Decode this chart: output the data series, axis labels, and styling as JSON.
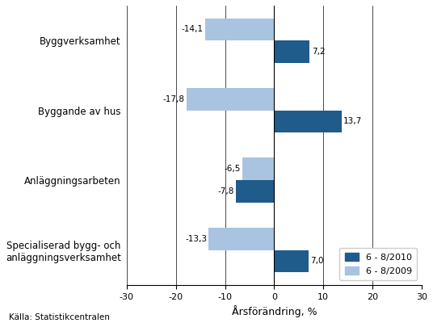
{
  "categories": [
    "Byggverksamhet",
    "Byggande av hus",
    "Anläggningsarbeten",
    "Specialiserad bygg- och\nanläggningsverksamhet"
  ],
  "values_2010": [
    7.2,
    13.7,
    -7.8,
    7.0
  ],
  "values_2009": [
    -14.1,
    -17.8,
    -6.5,
    -13.3
  ],
  "labels_2010": [
    "7,2",
    "13,7",
    "-7,8",
    "7,0"
  ],
  "labels_2009": [
    "-14,1",
    "-17,8",
    "-6,5",
    "-13,3"
  ],
  "color_2010": "#1F5C8B",
  "color_2009": "#A8C4E0",
  "xlim": [
    -30,
    30
  ],
  "xticks": [
    -30,
    -20,
    -10,
    0,
    10,
    20,
    30
  ],
  "xlabel": "Årsförändring, %",
  "legend_2010": "6 - 8/2010",
  "legend_2009": "6 - 8/2009",
  "source": "Källa: Statistikcentralen",
  "bar_height": 0.32,
  "figsize": [
    5.36,
    4.0
  ],
  "dpi": 100
}
